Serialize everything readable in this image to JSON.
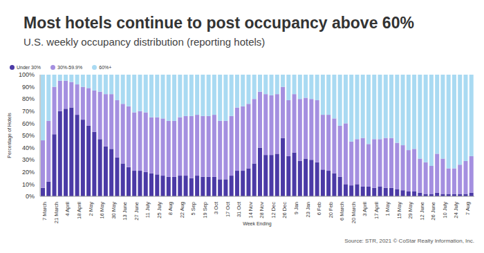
{
  "chart_data": {
    "type": "bar",
    "title": "Most hotels continue to post occupancy above 60%",
    "subtitle": "U.S. weekly occupancy distribution (reporting hotels)",
    "x_label": "Week Ending",
    "y_label": "Percentage of Hotels",
    "source": "Source: STR, 2021 © CoStar Realty Information, Inc.",
    "stacked": true,
    "grid": false,
    "legend": "top-left",
    "categories": [
      "7 March",
      null,
      "21 March",
      null,
      "4 April",
      null,
      "18 April",
      null,
      "2 May",
      null,
      "16 May",
      null,
      "30 May",
      null,
      "13 June",
      null,
      "27 June",
      null,
      "11 July",
      null,
      "25 July",
      null,
      "8 Aug",
      null,
      "22 Aug",
      null,
      "5 Sep",
      null,
      "19 Sep",
      null,
      "3 Oct",
      null,
      "17 Oct",
      null,
      "31 Oct",
      null,
      "14 Nov",
      null,
      "28 Nov",
      null,
      "12 Dec",
      null,
      "26 Dec",
      null,
      "9 Jan",
      null,
      "23 Jan",
      null,
      "6 Feb",
      null,
      "20 Feb",
      null,
      "6 March",
      null,
      "20 March",
      null,
      "3 April",
      null,
      "17 April",
      null,
      "1 May",
      null,
      "15 May",
      null,
      "29 May",
      null,
      "12 June",
      null,
      "26 June",
      null,
      "10 July",
      null,
      "24 July",
      null,
      "7 Aug",
      null
    ],
    "series": [
      {
        "name": "Under 30%",
        "color": "#4b3aa6",
        "values": [
          7,
          12,
          51,
          70,
          72,
          73,
          67,
          63,
          58,
          53,
          47,
          41,
          39,
          32,
          27,
          24,
          21,
          21,
          20,
          19,
          18,
          17,
          16,
          16,
          17,
          17,
          15,
          17,
          16,
          16,
          16,
          14,
          14,
          17,
          21,
          21,
          23,
          27,
          40,
          34,
          34,
          35,
          48,
          33,
          36,
          29,
          31,
          30,
          28,
          22,
          21,
          19,
          16,
          10,
          9,
          10,
          8,
          8,
          7,
          8,
          7,
          7,
          6,
          5,
          4,
          4,
          3,
          2,
          2,
          3,
          2,
          2,
          2,
          2,
          2,
          3
        ]
      },
      {
        "name": "30%-59.9%",
        "color": "#a48fe0",
        "values": [
          39,
          50,
          39,
          25,
          23,
          21,
          25,
          27,
          31,
          34,
          39,
          43,
          45,
          47,
          49,
          50,
          48,
          49,
          49,
          46,
          47,
          47,
          46,
          46,
          48,
          49,
          51,
          50,
          50,
          50,
          51,
          48,
          48,
          49,
          52,
          53,
          53,
          53,
          46,
          50,
          49,
          49,
          42,
          46,
          48,
          51,
          50,
          50,
          51,
          45,
          46,
          45,
          42,
          50,
          36,
          37,
          40,
          35,
          40,
          39,
          41,
          41,
          38,
          37,
          34,
          35,
          28,
          26,
          23,
          32,
          29,
          21,
          21,
          24,
          27,
          30
        ]
      },
      {
        "name": "60%+",
        "color": "#a9daf2",
        "values": [
          54,
          38,
          10,
          5,
          5,
          6,
          8,
          10,
          11,
          13,
          14,
          16,
          16,
          21,
          24,
          26,
          31,
          30,
          31,
          35,
          35,
          36,
          38,
          38,
          35,
          34,
          34,
          33,
          34,
          34,
          33,
          38,
          38,
          34,
          27,
          26,
          24,
          20,
          14,
          16,
          17,
          16,
          10,
          21,
          16,
          20,
          19,
          20,
          21,
          33,
          33,
          36,
          42,
          40,
          55,
          53,
          52,
          57,
          53,
          53,
          52,
          52,
          56,
          58,
          62,
          61,
          69,
          72,
          75,
          65,
          69,
          77,
          77,
          74,
          71,
          67
        ]
      }
    ],
    "ylim": [
      0,
      100
    ],
    "yticks": [
      {
        "value": 0,
        "label": "0%"
      },
      {
        "value": 10,
        "label": "10%"
      },
      {
        "value": 20,
        "label": "20%"
      },
      {
        "value": 30,
        "label": "30%"
      },
      {
        "value": 40,
        "label": "40%"
      },
      {
        "value": 50,
        "label": "50%"
      },
      {
        "value": 60,
        "label": "60%"
      },
      {
        "value": 70,
        "label": "70%"
      },
      {
        "value": 80,
        "label": "80%"
      },
      {
        "value": 90,
        "label": "90%"
      },
      {
        "value": 100,
        "label": "100%"
      }
    ]
  }
}
